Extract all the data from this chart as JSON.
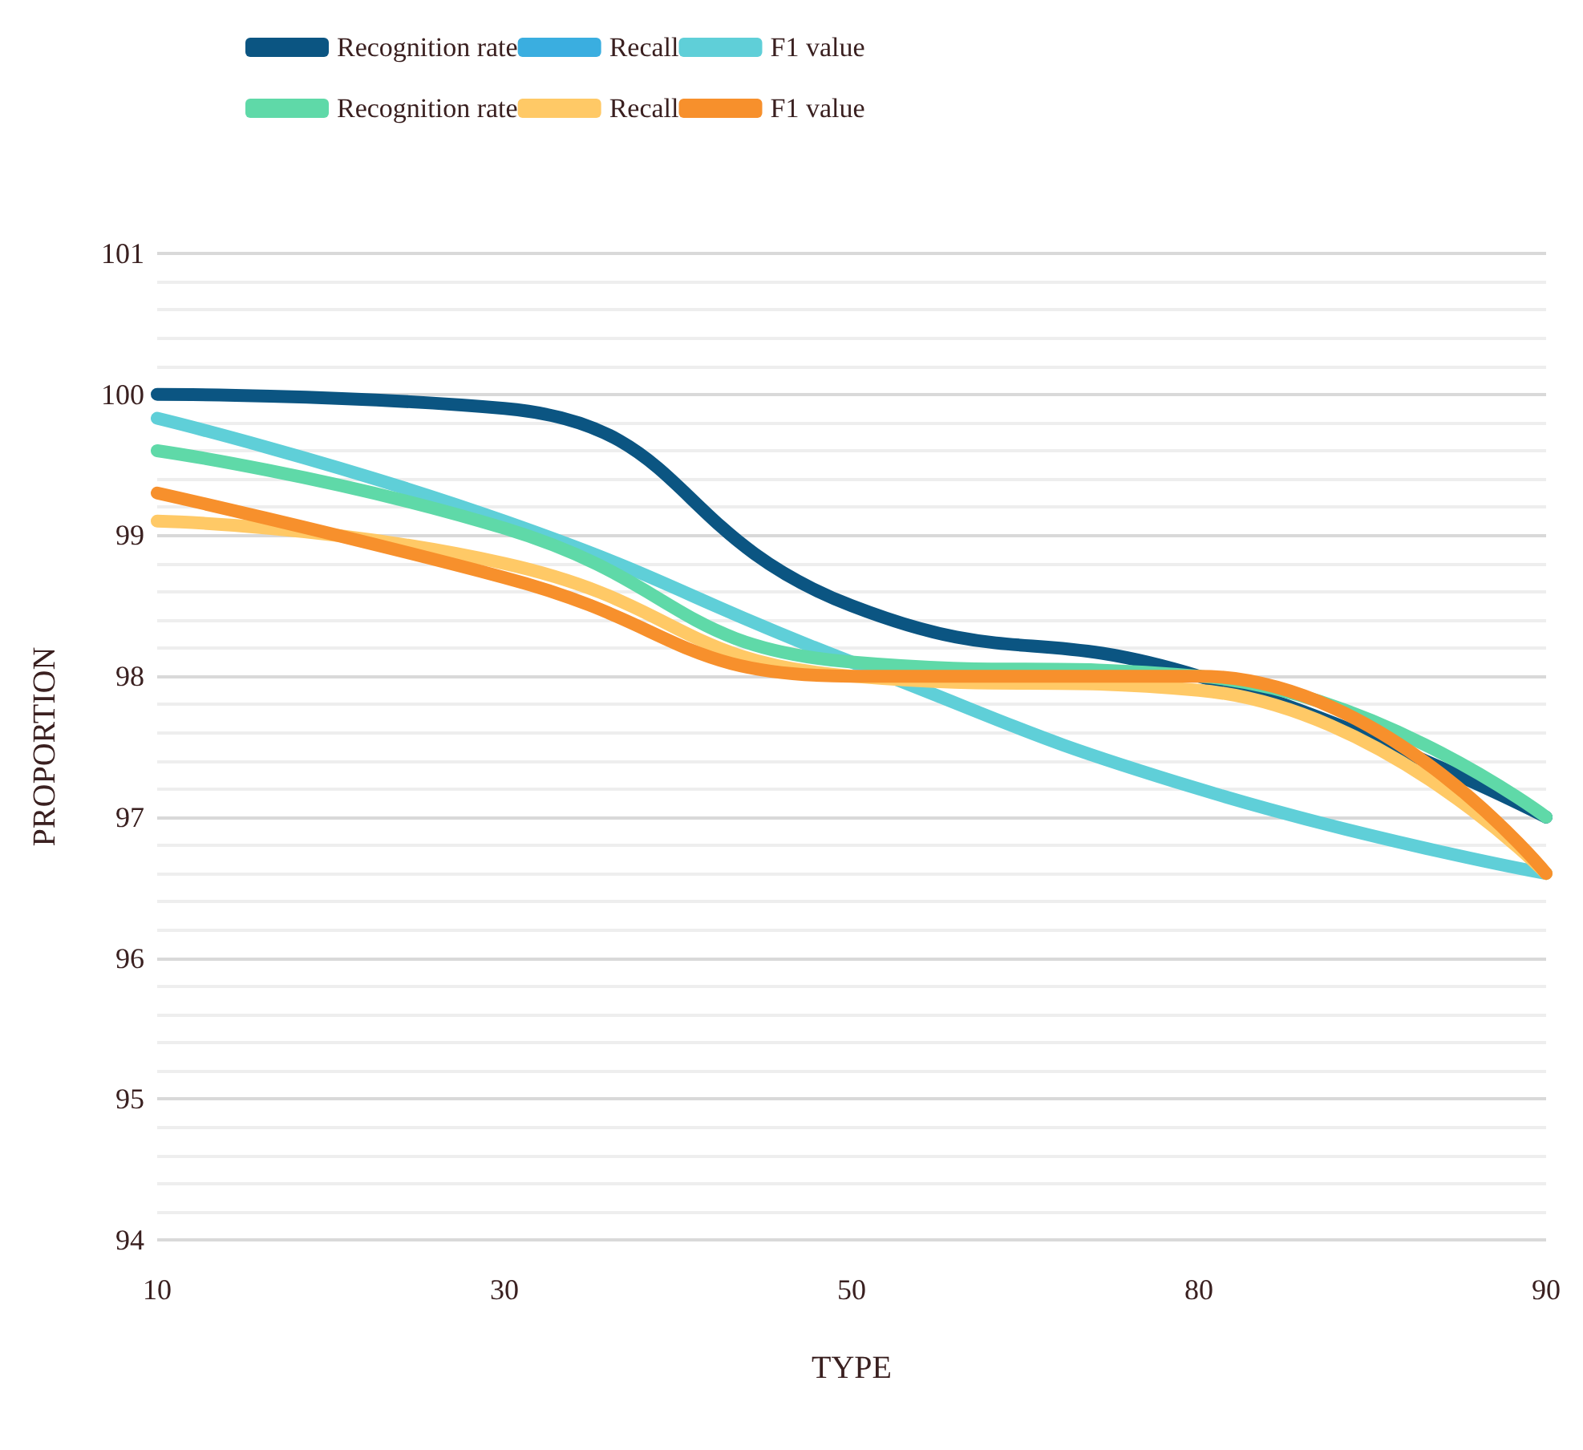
{
  "chart_data": {
    "type": "line",
    "xlabel": "TYPE",
    "ylabel": "PROPORTION",
    "categories": [
      "10",
      "30",
      "50",
      "80",
      "90"
    ],
    "ylim": [
      94,
      101
    ],
    "yticks": [
      94,
      95,
      96,
      97,
      98,
      99,
      100,
      101
    ],
    "grid": "y",
    "legend": "top",
    "marker": "none",
    "line_style": "solid",
    "series": [
      {
        "name": "Recognition rate",
        "color": "#0b5582",
        "values": [
          100.0,
          99.9,
          98.5,
          98.0,
          97.0
        ]
      },
      {
        "name": "Recall",
        "color": "#3aaee0",
        "values": [
          null,
          null,
          null,
          null,
          null
        ]
      },
      {
        "name": "F1 value",
        "color": "#5fcfd8",
        "values": [
          99.83,
          99.1,
          98.1,
          97.2,
          96.6
        ]
      },
      {
        "name": "Recognition rate",
        "color": "#5fd9a8",
        "values": [
          99.6,
          99.05,
          98.1,
          98.0,
          97.0
        ]
      },
      {
        "name": "Recall",
        "color": "#ffc966",
        "values": [
          99.1,
          98.8,
          98.0,
          97.9,
          96.6
        ]
      },
      {
        "name": "F1 value",
        "color": "#f7902c",
        "values": [
          99.3,
          98.7,
          98.0,
          98.0,
          96.6
        ]
      }
    ]
  }
}
